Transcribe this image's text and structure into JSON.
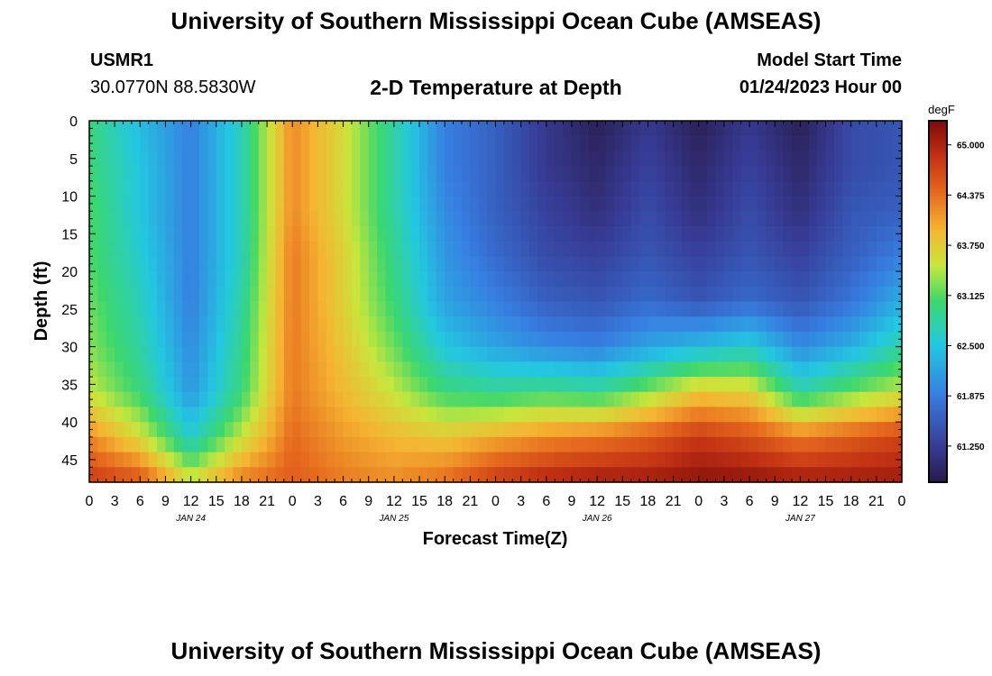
{
  "header": {
    "title": "University of Southern Mississippi Ocean Cube (AMSEAS)",
    "station_id": "USMR1",
    "coordinates": "30.0770N  88.5830W",
    "chart_title": "2-D Temperature at Depth",
    "model_start_label": "Model Start Time",
    "model_start_value": "01/24/2023 Hour 00"
  },
  "footer": {
    "title": "University of Southern Mississippi Ocean Cube (AMSEAS)"
  },
  "colors": {
    "background": "#ffffff",
    "axis": "#000000"
  },
  "chart_data": {
    "type": "heatmap",
    "title": "2-D Temperature at Depth",
    "xlabel": "Forecast Time(Z)",
    "ylabel": "Depth (ft)",
    "x_range_hours": [
      0,
      96
    ],
    "x_tick_step_hours": 3,
    "x_tick_labels": [
      "0",
      "3",
      "6",
      "9",
      "12",
      "15",
      "18",
      "21",
      "0",
      "3",
      "6",
      "9",
      "12",
      "15",
      "18",
      "21",
      "0",
      "3",
      "6",
      "9",
      "12",
      "15",
      "18",
      "21",
      "0",
      "3",
      "6",
      "9",
      "12",
      "15",
      "18",
      "21",
      "0"
    ],
    "date_labels": [
      {
        "text": "JAN 24",
        "hour": 12
      },
      {
        "text": "JAN 25",
        "hour": 36
      },
      {
        "text": "JAN 26",
        "hour": 60
      },
      {
        "text": "JAN 27",
        "hour": 84
      }
    ],
    "y_range_ft": [
      0,
      48
    ],
    "y_tick_values": [
      0,
      5,
      10,
      15,
      20,
      25,
      30,
      35,
      40,
      45
    ],
    "y_tick_labels": [
      "0",
      "5",
      "10",
      "15",
      "20",
      "25",
      "30",
      "35",
      "40",
      "45"
    ],
    "colorbar": {
      "unit": "degF",
      "range": [
        60.8,
        65.3
      ],
      "tick_values": [
        65.0,
        64.375,
        63.75,
        63.125,
        62.5,
        61.875,
        61.25
      ],
      "tick_labels": [
        "65.000",
        "64.375",
        "63.750",
        "63.125",
        "62.500",
        "61.875",
        "61.250"
      ]
    },
    "grid": {
      "hours": [
        0,
        6,
        12,
        18,
        24,
        30,
        36,
        42,
        48,
        54,
        60,
        66,
        72,
        78,
        84,
        90,
        96
      ],
      "depths_ft": [
        0,
        6,
        12,
        18,
        24,
        30,
        36,
        42,
        48
      ],
      "temperature_degF": [
        [
          63.0,
          62.4,
          61.9,
          62.7,
          64.2,
          63.6,
          62.8,
          61.9,
          61.6,
          61.2,
          60.9,
          61.2,
          60.9,
          61.2,
          60.9,
          61.4,
          61.5
        ],
        [
          63.0,
          62.5,
          61.9,
          62.7,
          64.2,
          63.6,
          62.8,
          61.9,
          61.6,
          61.2,
          61.0,
          61.3,
          61.0,
          61.3,
          61.0,
          61.4,
          61.5
        ],
        [
          63.1,
          62.5,
          61.9,
          62.7,
          64.2,
          63.6,
          62.8,
          62.0,
          61.6,
          61.3,
          61.1,
          61.4,
          61.1,
          61.4,
          61.1,
          61.5,
          61.6
        ],
        [
          63.1,
          62.6,
          61.9,
          62.7,
          64.3,
          63.7,
          62.9,
          62.1,
          61.7,
          61.4,
          61.3,
          61.5,
          61.3,
          61.5,
          61.3,
          61.6,
          61.9
        ],
        [
          63.2,
          62.7,
          61.9,
          62.8,
          64.3,
          63.7,
          63.0,
          62.2,
          61.9,
          61.6,
          61.5,
          61.7,
          61.5,
          61.7,
          61.5,
          61.8,
          62.3
        ],
        [
          63.3,
          62.8,
          62.0,
          62.9,
          64.3,
          63.8,
          63.2,
          62.5,
          62.2,
          62.0,
          61.9,
          62.2,
          62.4,
          62.6,
          62.0,
          62.3,
          62.8
        ],
        [
          63.5,
          63.0,
          62.1,
          63.0,
          64.3,
          63.9,
          63.5,
          63.0,
          62.9,
          63.0,
          62.9,
          63.3,
          63.8,
          63.7,
          62.8,
          63.2,
          63.5
        ],
        [
          64.2,
          63.6,
          62.6,
          63.5,
          64.4,
          64.1,
          63.9,
          63.8,
          64.0,
          64.2,
          64.3,
          64.5,
          64.8,
          64.6,
          64.3,
          64.5,
          64.7
        ],
        [
          64.8,
          64.6,
          63.6,
          64.3,
          64.5,
          64.3,
          64.2,
          64.4,
          64.8,
          65.0,
          65.1,
          65.1,
          65.2,
          65.2,
          65.1,
          65.1,
          65.1
        ]
      ]
    }
  }
}
